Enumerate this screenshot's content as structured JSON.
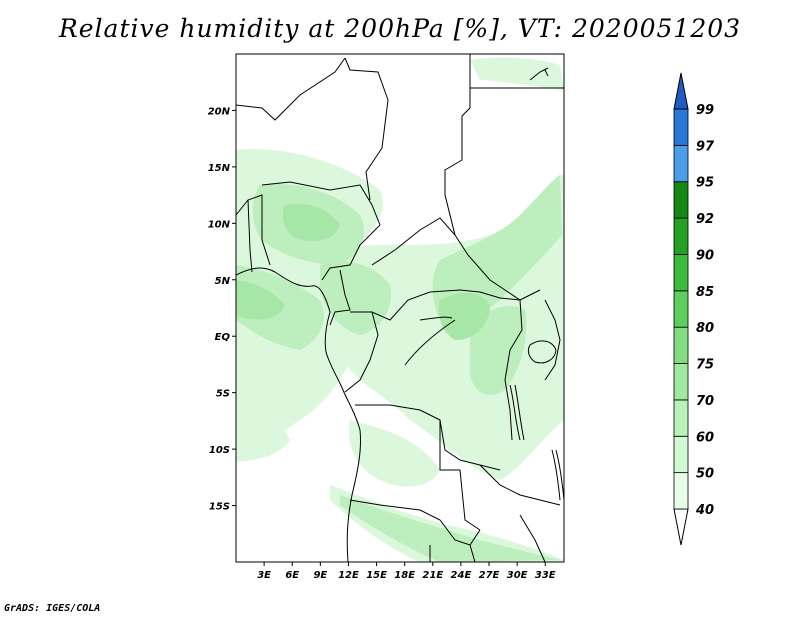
{
  "title": "Relative humidity at 200hPa [%], VT: 2020051203",
  "credit": "GrADS: IGES/COLA",
  "map": {
    "lon_range": [
      0,
      35
    ],
    "lat_range": [
      -20,
      25
    ],
    "lat_ticks": [
      {
        "value": 20,
        "label": "20N"
      },
      {
        "value": 15,
        "label": "15N"
      },
      {
        "value": 10,
        "label": "10N"
      },
      {
        "value": 5,
        "label": "5N"
      },
      {
        "value": 0,
        "label": "EQ"
      },
      {
        "value": -5,
        "label": "5S"
      },
      {
        "value": -10,
        "label": "10S"
      },
      {
        "value": -15,
        "label": "15S"
      }
    ],
    "lon_ticks": [
      {
        "value": 3,
        "label": "3E"
      },
      {
        "value": 6,
        "label": "6E"
      },
      {
        "value": 9,
        "label": "9E"
      },
      {
        "value": 12,
        "label": "12E"
      },
      {
        "value": 15,
        "label": "15E"
      },
      {
        "value": 18,
        "label": "18E"
      },
      {
        "value": 21,
        "label": "21E"
      },
      {
        "value": 24,
        "label": "24E"
      },
      {
        "value": 27,
        "label": "27E"
      },
      {
        "value": 30,
        "label": "30E"
      },
      {
        "value": 33,
        "label": "33E"
      }
    ]
  },
  "colorbar": {
    "levels": [
      {
        "label": "40",
        "color": "#e6ffe6"
      },
      {
        "label": "50",
        "color": "#d2fad2"
      },
      {
        "label": "60",
        "color": "#b8f2b8"
      },
      {
        "label": "70",
        "color": "#9fe89f"
      },
      {
        "label": "75",
        "color": "#82dc82"
      },
      {
        "label": "80",
        "color": "#5ccf5c"
      },
      {
        "label": "85",
        "color": "#3cba3c"
      },
      {
        "label": "90",
        "color": "#24a024"
      },
      {
        "label": "92",
        "color": "#148a14"
      },
      {
        "label": "95",
        "color": "#4a9ee8"
      },
      {
        "label": "97",
        "color": "#2878d8"
      },
      {
        "label": "99",
        "color": "#1e5cc0"
      }
    ]
  },
  "colors": {
    "shade_light": "#dcf8dc",
    "shade_mid": "#bdeebd",
    "shade_dark": "#a6e6a6",
    "border": "#000000"
  }
}
